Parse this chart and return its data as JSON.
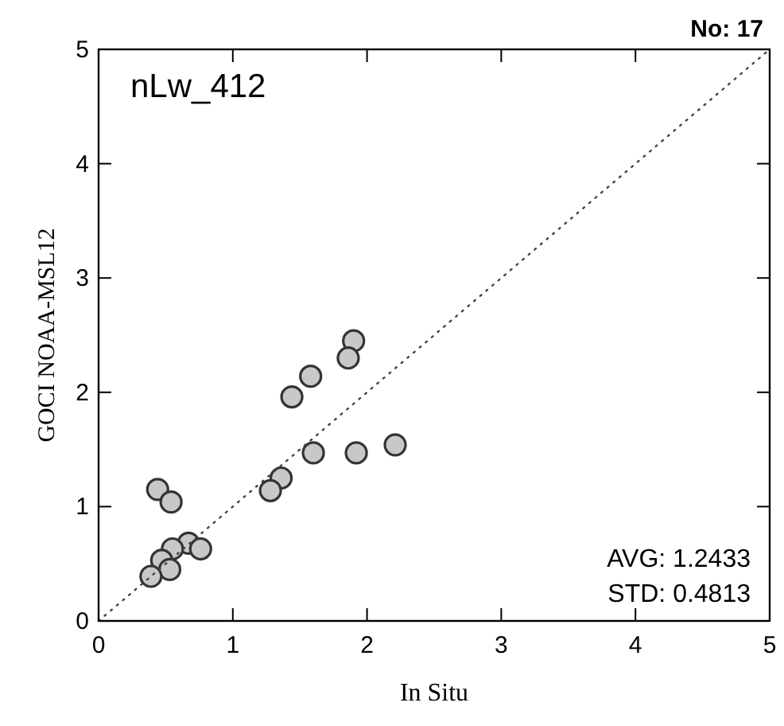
{
  "chart_data": {
    "type": "scatter",
    "title": "nLw_412",
    "xlabel": "In Situ",
    "ylabel": "GOCI NOAA-MSL12",
    "xlim": [
      0,
      5
    ],
    "ylim": [
      0,
      5
    ],
    "xticks": [
      0,
      1,
      2,
      3,
      4,
      5
    ],
    "yticks": [
      0,
      1,
      2,
      3,
      4,
      5
    ],
    "grid": false,
    "series": [
      {
        "color": "#c8c8c8",
        "marker": "circle",
        "x": [
          1.9,
          1.86,
          1.58,
          1.44,
          1.6,
          1.92,
          2.21,
          1.36,
          1.28,
          0.44,
          0.54,
          0.67,
          0.76,
          0.55,
          0.47,
          0.53,
          0.39
        ],
        "values": [
          2.45,
          2.3,
          2.14,
          1.96,
          1.47,
          1.47,
          1.54,
          1.25,
          1.14,
          1.15,
          1.04,
          0.68,
          0.63,
          0.63,
          0.53,
          0.45,
          0.39
        ]
      },
      {
        "type": "line",
        "color": "#444444",
        "line_style": "dotted",
        "x": [
          0,
          5
        ],
        "values": [
          0,
          5
        ]
      }
    ],
    "annotations": [
      "No: 17",
      "AVG: 1.2433",
      "STD: 0.4813"
    ]
  }
}
